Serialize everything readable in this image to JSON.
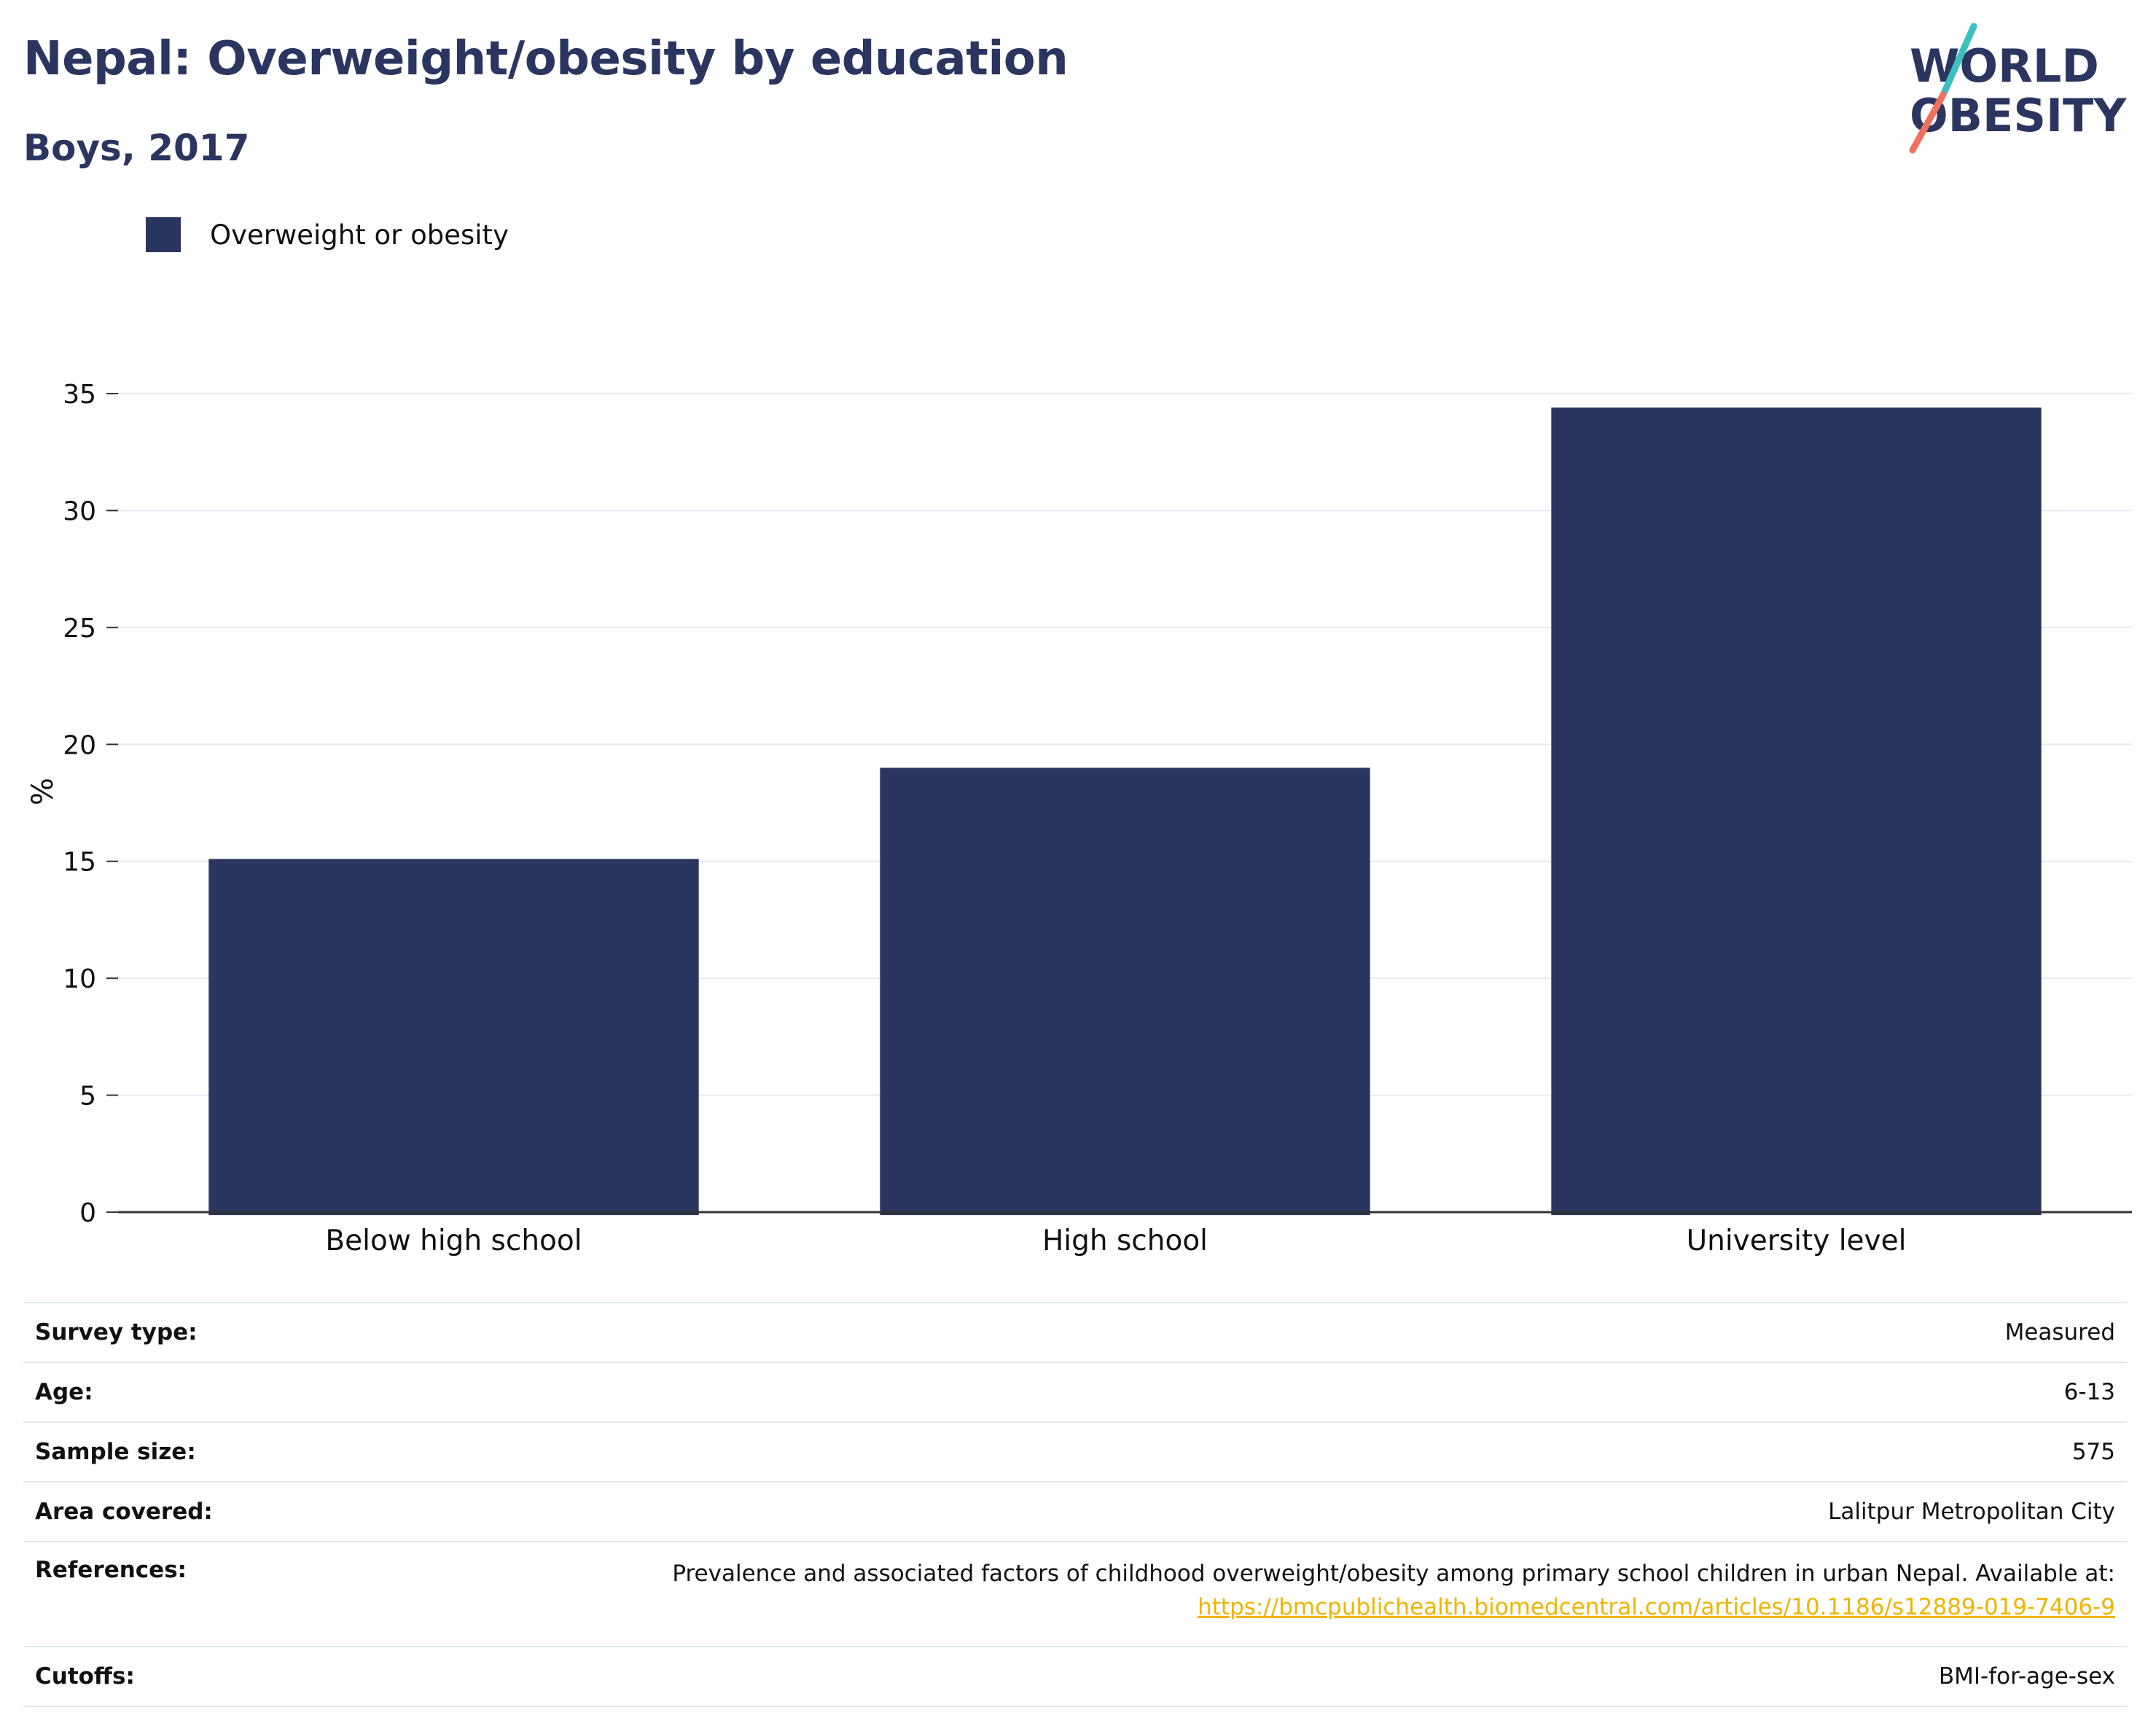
{
  "header": {
    "title": "Nepal: Overweight/obesity by education",
    "subtitle": "Boys, 2017"
  },
  "logo": {
    "line1": "WORLD",
    "line2": "OBESITY",
    "colors": {
      "navy": "#2a3560",
      "teal": "#3bbfbf",
      "coral": "#f07060"
    }
  },
  "legend": {
    "label": "Overweight or obesity",
    "color": "#2a3560"
  },
  "chart_data": {
    "type": "bar",
    "categories": [
      "Below high school",
      "High school",
      "University level"
    ],
    "series": [
      {
        "name": "Overweight or obesity",
        "values": [
          15.1,
          19.0,
          34.4
        ],
        "color": "#2a3560"
      }
    ],
    "title": "Nepal: Overweight/obesity by education",
    "subtitle": "Boys, 2017",
    "xlabel": "",
    "ylabel": "%",
    "ylim": [
      0,
      35
    ],
    "yticks": [
      0,
      5,
      10,
      15,
      20,
      25,
      30,
      35
    ],
    "grid": true,
    "legend_position": "top-left"
  },
  "info": {
    "survey_type": {
      "label": "Survey type:",
      "value": "Measured"
    },
    "age": {
      "label": "Age:",
      "value": "6-13"
    },
    "sample_size": {
      "label": "Sample size:",
      "value": "575"
    },
    "area_covered": {
      "label": "Area covered:",
      "value": "Lalitpur Metropolitan City"
    },
    "references": {
      "label": "References:",
      "text": "Prevalence and associated factors of childhood overweight/obesity among primary school children in urban Nepal. Available at:",
      "link": "https://bmcpublichealth.biomedcentral.com/articles/10.1186/s12889-019-7406-9"
    },
    "cutoffs": {
      "label": "Cutoffs:",
      "value": "BMI-for-age-sex"
    }
  }
}
